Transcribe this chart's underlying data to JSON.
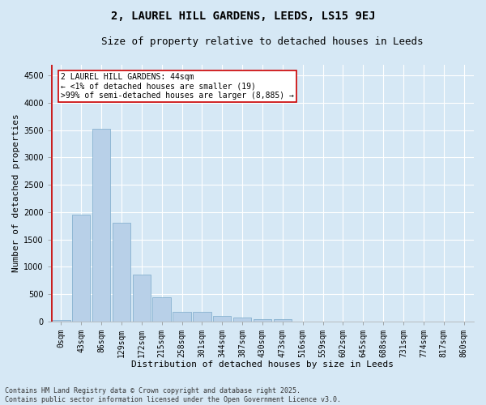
{
  "title_line1": "2, LAUREL HILL GARDENS, LEEDS, LS15 9EJ",
  "title_line2": "Size of property relative to detached houses in Leeds",
  "xlabel": "Distribution of detached houses by size in Leeds",
  "ylabel": "Number of detached properties",
  "bar_labels": [
    "0sqm",
    "43sqm",
    "86sqm",
    "129sqm",
    "172sqm",
    "215sqm",
    "258sqm",
    "301sqm",
    "344sqm",
    "387sqm",
    "430sqm",
    "473sqm",
    "516sqm",
    "559sqm",
    "602sqm",
    "645sqm",
    "688sqm",
    "731sqm",
    "774sqm",
    "817sqm",
    "860sqm"
  ],
  "bar_values": [
    30,
    1950,
    3520,
    1800,
    850,
    440,
    175,
    170,
    95,
    75,
    45,
    35,
    0,
    0,
    0,
    0,
    0,
    0,
    0,
    0,
    0
  ],
  "bar_color": "#b8d0e8",
  "bar_edge_color": "#7aaaca",
  "vline_color": "#cc0000",
  "annotation_text": "2 LAUREL HILL GARDENS: 44sqm\n← <1% of detached houses are smaller (19)\n>99% of semi-detached houses are larger (8,885) →",
  "annotation_box_color": "#cc0000",
  "ylim": [
    0,
    4700
  ],
  "yticks": [
    0,
    500,
    1000,
    1500,
    2000,
    2500,
    3000,
    3500,
    4000,
    4500
  ],
  "background_color": "#d6e8f5",
  "plot_bg_color": "#d6e8f5",
  "footer_line1": "Contains HM Land Registry data © Crown copyright and database right 2025.",
  "footer_line2": "Contains public sector information licensed under the Open Government Licence v3.0.",
  "grid_color": "#ffffff",
  "title_fontsize": 10,
  "subtitle_fontsize": 9,
  "axis_label_fontsize": 8,
  "tick_fontsize": 7,
  "annotation_fontsize": 7,
  "footer_fontsize": 6
}
